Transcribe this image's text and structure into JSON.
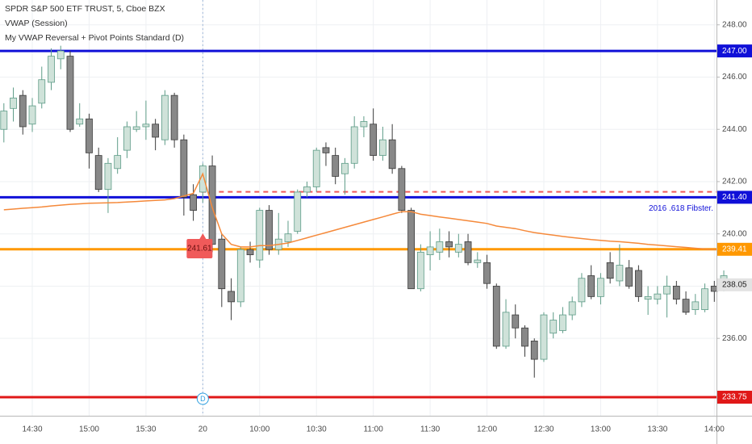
{
  "chart_data": {
    "type": "candlestick",
    "title": "SPDR S&P 500 ETF TRUST, 5, Cboe BZX",
    "indicators": [
      "VWAP (Session)",
      "My VWAP Reversal + Pivot Points Standard (D)"
    ],
    "categories": [
      null,
      null,
      null,
      "14:30",
      null,
      null,
      null,
      null,
      null,
      "15:00",
      null,
      null,
      null,
      null,
      null,
      "15:30",
      null,
      null,
      null,
      null,
      null,
      "20",
      null,
      null,
      null,
      null,
      null,
      "10:00",
      null,
      null,
      null,
      null,
      null,
      "10:30",
      null,
      null,
      null,
      null,
      null,
      "11:00",
      null,
      null,
      null,
      null,
      null,
      "11:30",
      null,
      null,
      null,
      null,
      null,
      "12:00",
      null,
      null,
      null,
      null,
      null,
      "12:30",
      null,
      null,
      null,
      null,
      null,
      "13:00",
      null,
      null,
      null,
      null,
      null,
      "13:30",
      null,
      null,
      null,
      null,
      null,
      "14:00",
      null
    ],
    "open": [
      244.0,
      244.8,
      245.3,
      244.2,
      245.0,
      245.8,
      246.7,
      246.8,
      244.2,
      244.4,
      243.0,
      241.7,
      242.5,
      243.2,
      244.0,
      244.1,
      244.2,
      243.6,
      245.3,
      243.6,
      241.5,
      241.6,
      242.6,
      239.8,
      237.8,
      237.4,
      239.4,
      239.0,
      240.9,
      239.4,
      239.7,
      240.1,
      241.6,
      241.8,
      243.3,
      243.0,
      242.3,
      242.7,
      244.1,
      244.2,
      243.0,
      243.6,
      242.5,
      240.9,
      237.9,
      239.2,
      239.3,
      239.7,
      239.3,
      239.7,
      238.9,
      238.9,
      238.0,
      235.7,
      236.9,
      236.4,
      235.9,
      235.2,
      236.2,
      236.3,
      236.9,
      237.4,
      238.4,
      237.6,
      238.9,
      238.2,
      238.7,
      238.6,
      237.5,
      237.5,
      237.7,
      238.0,
      237.5,
      237.1,
      237.1,
      238.0,
      237.9
    ],
    "high": [
      245.0,
      245.6,
      245.5,
      245.2,
      246.4,
      247.1,
      247.2,
      247.0,
      245.0,
      244.6,
      243.3,
      242.9,
      243.7,
      244.3,
      244.7,
      245.1,
      244.4,
      245.5,
      245.4,
      243.8,
      241.9,
      242.7,
      243.0,
      240.0,
      238.3,
      239.5,
      239.7,
      241.0,
      241.1,
      240.8,
      240.5,
      241.7,
      242.0,
      243.3,
      243.5,
      243.3,
      242.9,
      244.5,
      244.5,
      244.8,
      244.1,
      244.2,
      242.6,
      241.0,
      239.6,
      240.1,
      240.2,
      240.1,
      240.0,
      240.0,
      239.3,
      239.2,
      238.1,
      237.5,
      237.3,
      236.5,
      236.0,
      237.0,
      237.0,
      237.2,
      237.6,
      238.5,
      238.8,
      238.5,
      239.3,
      239.6,
      239.0,
      238.8,
      238.0,
      238.0,
      238.4,
      238.2,
      237.8,
      237.7,
      238.1,
      238.2,
      238.6
    ],
    "low": [
      243.5,
      244.3,
      243.8,
      243.9,
      244.8,
      245.5,
      246.3,
      243.9,
      244.1,
      242.5,
      241.6,
      240.8,
      242.3,
      242.9,
      243.9,
      243.6,
      243.2,
      243.4,
      243.3,
      240.7,
      240.5,
      241.2,
      239.3,
      237.2,
      236.7,
      237.2,
      238.9,
      238.7,
      239.2,
      239.2,
      239.5,
      240.0,
      241.4,
      241.6,
      242.6,
      241.9,
      241.5,
      242.5,
      243.7,
      242.8,
      242.8,
      242.3,
      240.8,
      237.9,
      237.8,
      238.6,
      239.0,
      239.1,
      239.1,
      238.8,
      238.7,
      237.9,
      235.6,
      235.6,
      236.0,
      235.3,
      234.5,
      235.1,
      236.0,
      236.2,
      236.7,
      237.2,
      237.5,
      237.3,
      238.1,
      238.0,
      237.9,
      237.4,
      236.9,
      237.3,
      236.8,
      237.3,
      236.9,
      236.9,
      237.0,
      237.4,
      237.8
    ],
    "close": [
      244.7,
      245.2,
      244.1,
      244.9,
      245.9,
      246.8,
      247.0,
      244.0,
      244.4,
      243.1,
      241.7,
      242.7,
      243.0,
      244.1,
      244.1,
      244.2,
      243.7,
      245.3,
      243.6,
      241.4,
      240.9,
      242.6,
      239.6,
      237.9,
      237.4,
      239.4,
      239.2,
      240.9,
      239.4,
      239.8,
      240.0,
      241.6,
      241.8,
      243.2,
      243.1,
      242.2,
      242.7,
      244.1,
      244.3,
      243.0,
      243.6,
      242.5,
      240.9,
      237.9,
      239.3,
      239.5,
      239.7,
      239.5,
      239.6,
      238.9,
      239.0,
      238.1,
      235.7,
      237.0,
      236.4,
      235.7,
      235.2,
      236.9,
      236.7,
      236.9,
      237.4,
      238.3,
      237.6,
      238.3,
      238.3,
      238.8,
      238.0,
      237.6,
      237.6,
      237.7,
      238.0,
      237.5,
      237.0,
      237.4,
      237.9,
      237.8,
      238.4
    ],
    "up_color": "#cfe2d9",
    "up_border": "#5e9c88",
    "down_color": "#888888",
    "down_border": "#3b3b3b",
    "vwap": {
      "name": "VWAP (Session)",
      "color": "#f5893a",
      "values": [
        240.92,
        240.95,
        240.98,
        241.0,
        241.03,
        241.07,
        241.1,
        241.13,
        241.15,
        241.17,
        241.18,
        241.19,
        241.2,
        241.22,
        241.24,
        241.26,
        241.28,
        241.3,
        241.35,
        241.45,
        241.55,
        242.3,
        241.0,
        240.0,
        239.6,
        239.5,
        239.5,
        239.55,
        239.55,
        239.6,
        239.65,
        239.75,
        239.85,
        239.95,
        240.05,
        240.15,
        240.25,
        240.35,
        240.45,
        240.55,
        240.65,
        240.75,
        240.85,
        240.85,
        240.75,
        240.7,
        240.65,
        240.6,
        240.55,
        240.5,
        240.45,
        240.4,
        240.3,
        240.25,
        240.2,
        240.12,
        240.05,
        240.0,
        239.95,
        239.9,
        239.86,
        239.82,
        239.78,
        239.75,
        239.72,
        239.7,
        239.67,
        239.64,
        239.6,
        239.57,
        239.54,
        239.51,
        239.48,
        239.45,
        239.42,
        239.4,
        239.38
      ]
    },
    "levels": [
      {
        "value": 247,
        "label": "247.00",
        "color": "#1010d8"
      },
      {
        "value": 241.4,
        "label": "241.40",
        "color": "#1010d8"
      },
      {
        "value": 239.41,
        "label": "239.41",
        "color": "#ff9800"
      },
      {
        "value": 233.75,
        "label": "233.75",
        "color": "#e01818"
      }
    ],
    "level_annotation": "2016 .618 Fibster.",
    "signal": 241.61,
    "signal_color": "#f05a5a",
    "last_price": 238.05,
    "day_marker": "D",
    "ylim": [
      233.04,
      248.95
    ],
    "yticks": [
      {
        "value": 236,
        "label": "236.00"
      },
      {
        "value": 238,
        "label": "238.00"
      },
      {
        "value": 240,
        "label": "240.00"
      },
      {
        "value": 242,
        "label": "242.00"
      },
      {
        "value": 244,
        "label": "244.00"
      },
      {
        "value": 246,
        "label": "246.00"
      },
      {
        "value": 248,
        "label": "248.00"
      }
    ],
    "grid": true
  }
}
